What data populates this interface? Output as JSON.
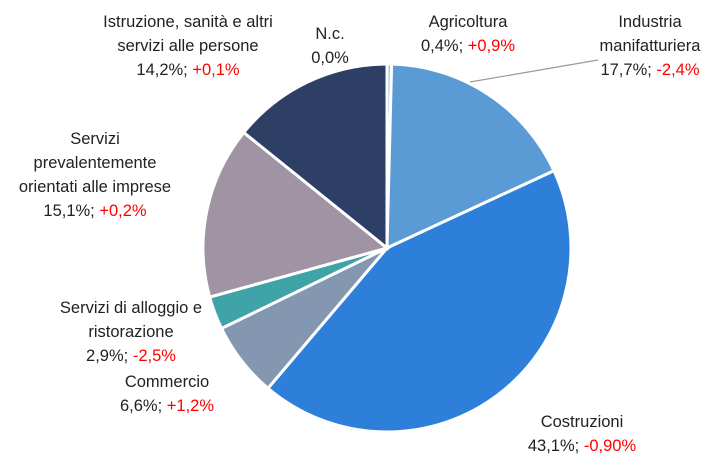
{
  "chart_data": {
    "type": "pie",
    "categories": [
      "Agricoltura",
      "Industria manifatturiera",
      "Costruzioni",
      "Commercio",
      "Servizi di alloggio e ristorazione",
      "Servizi prevalentemente orientati alle imprese",
      "Istruzione, sanità e altri servizi alle persone",
      "N.c."
    ],
    "values": [
      0.4,
      17.7,
      43.1,
      6.6,
      2.9,
      15.1,
      14.2,
      0.0
    ],
    "value_labels": [
      "0,4%;",
      "17,7%;",
      "43,1%;",
      "6,6%;",
      "2,9%;",
      "15,1%;",
      "14,2%;",
      "0,0%"
    ],
    "change_labels": [
      "+0,9%",
      "-2,4%",
      "-0,90%",
      "+1,2%",
      "-2,5%",
      "+0,2%",
      "+0,1%",
      null
    ],
    "colors": [
      "#9dc3e6",
      "#5b9bd5",
      "#2e7fd9",
      "#8497b0",
      "#3fa3a8",
      "#a093a3",
      "#2e3f66",
      "#2e3f66"
    ],
    "change_color": "#ff0000"
  }
}
